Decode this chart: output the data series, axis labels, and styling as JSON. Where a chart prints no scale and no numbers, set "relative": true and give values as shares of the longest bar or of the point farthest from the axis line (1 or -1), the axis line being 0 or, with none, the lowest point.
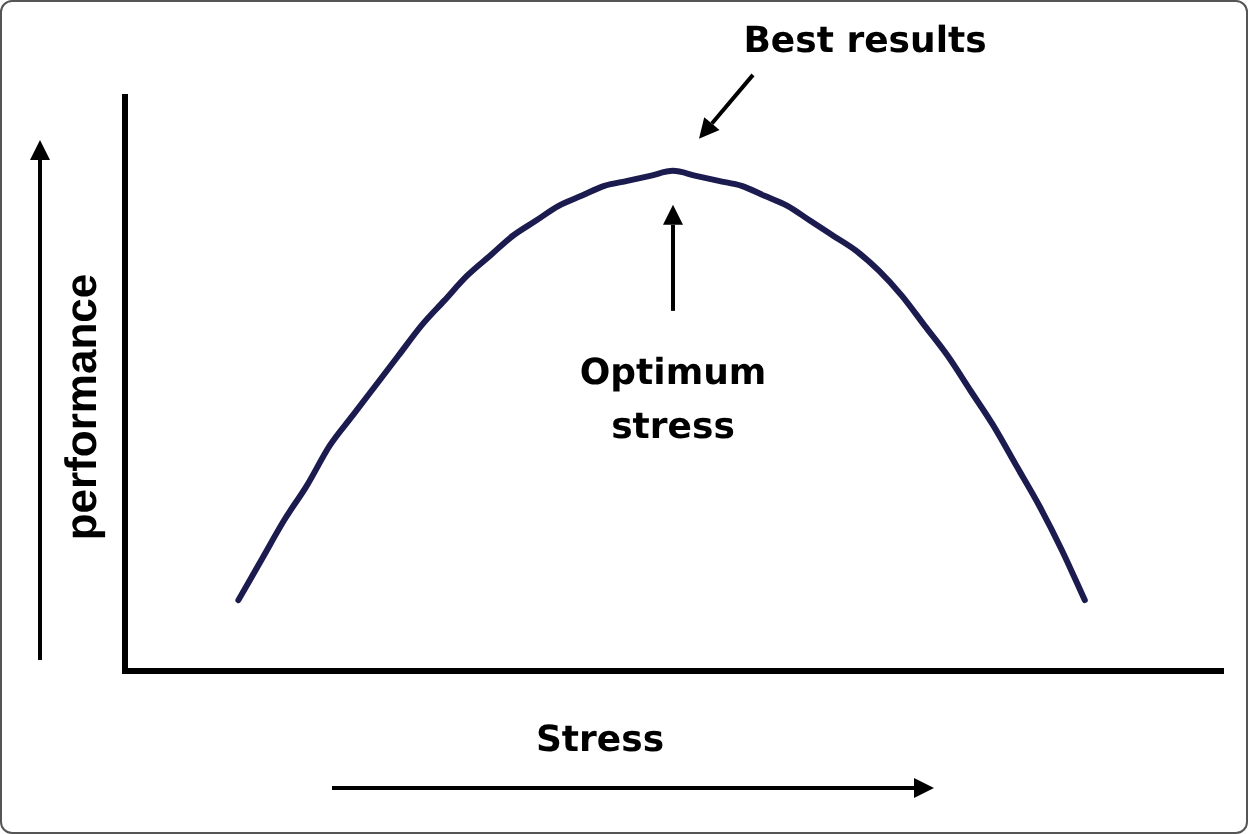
{
  "chart_data": {
    "type": "line",
    "relative": true,
    "xlabel": "Stress",
    "ylabel": "performance",
    "color": "#1b1b4f",
    "categories": [
      null,
      null,
      null,
      null,
      null,
      null,
      null,
      null,
      null,
      null,
      null,
      null,
      null,
      null,
      null,
      null,
      null,
      null,
      null,
      null,
      null,
      null,
      null,
      null,
      null,
      null,
      null,
      null,
      null,
      null,
      null,
      null,
      null,
      null,
      null,
      null,
      null,
      null,
      null,
      null,
      null,
      null,
      null,
      null,
      null,
      null,
      null,
      null,
      null
    ],
    "values": [
      null,
      null,
      null,
      null,
      null,
      0.14,
      0.22,
      0.3,
      0.37,
      0.45,
      0.51,
      0.57,
      0.63,
      0.69,
      0.74,
      0.79,
      0.83,
      0.87,
      0.9,
      0.93,
      0.95,
      0.97,
      0.98,
      0.99,
      1,
      0.99,
      0.98,
      0.97,
      0.95,
      0.93,
      0.9,
      0.87,
      0.84,
      0.8,
      0.75,
      0.69,
      0.63,
      0.56,
      0.49,
      0.41,
      0.33,
      0.24,
      0.14,
      null,
      null,
      null,
      null,
      null,
      null
    ],
    "annotations": [
      "Best results",
      "Optimum stress"
    ]
  }
}
